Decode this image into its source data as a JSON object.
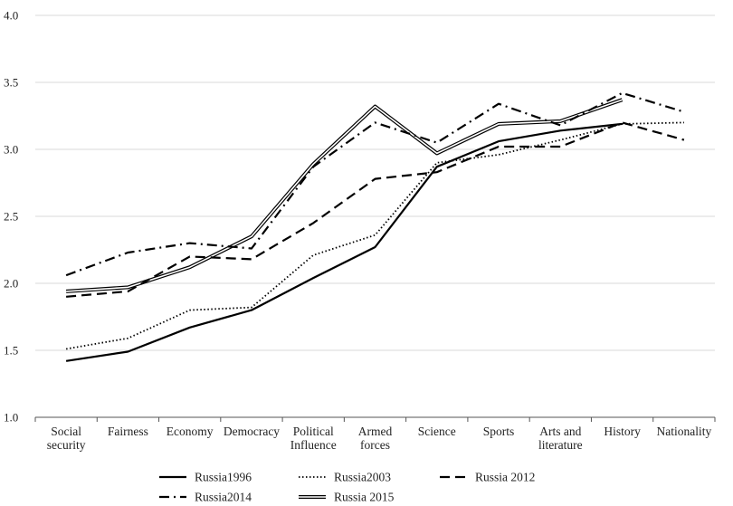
{
  "chart_data": {
    "type": "line",
    "title": "",
    "xlabel": "",
    "ylabel": "",
    "ylim": [
      1.0,
      4.0
    ],
    "yticks": [
      "1.0",
      "1.5",
      "2.0",
      "2.5",
      "3.0",
      "3.5",
      "4.0"
    ],
    "grid": "horizontal",
    "legend_position": "bottom",
    "categories": [
      [
        "Social",
        "security"
      ],
      [
        "Fairness"
      ],
      [
        "Economy"
      ],
      [
        "Democracy"
      ],
      [
        "Political",
        "Influence"
      ],
      [
        "Armed",
        "forces"
      ],
      [
        "Science"
      ],
      [
        "Sports"
      ],
      [
        "Arts and",
        "literature"
      ],
      [
        "History"
      ],
      [
        "Nationality"
      ]
    ],
    "series": [
      {
        "name": "Russia1996",
        "style": "solid",
        "color": "#000000",
        "values": [
          1.42,
          1.49,
          1.67,
          1.8,
          2.04,
          2.27,
          2.87,
          3.06,
          3.14,
          3.19,
          null
        ]
      },
      {
        "name": "Russia2003",
        "style": "dotted",
        "color": "#000000",
        "values": [
          1.51,
          1.59,
          1.8,
          1.82,
          2.21,
          2.36,
          2.9,
          2.96,
          3.07,
          3.19,
          3.2
        ]
      },
      {
        "name": "Russia 2012",
        "style": "dashed",
        "color": "#000000",
        "values": [
          1.9,
          1.94,
          2.2,
          2.18,
          2.45,
          2.78,
          2.83,
          3.02,
          3.02,
          3.2,
          3.07
        ]
      },
      {
        "name": "Russia2014",
        "style": "dashdot",
        "color": "#000000",
        "values": [
          2.06,
          2.23,
          2.3,
          2.26,
          2.87,
          3.2,
          3.05,
          3.34,
          3.18,
          3.42,
          3.28
        ]
      },
      {
        "name": "Russia 2015",
        "style": "double",
        "color": "#000000",
        "values": [
          1.94,
          1.97,
          2.12,
          2.35,
          2.89,
          3.32,
          2.97,
          3.19,
          3.21,
          3.37,
          null
        ]
      }
    ]
  }
}
